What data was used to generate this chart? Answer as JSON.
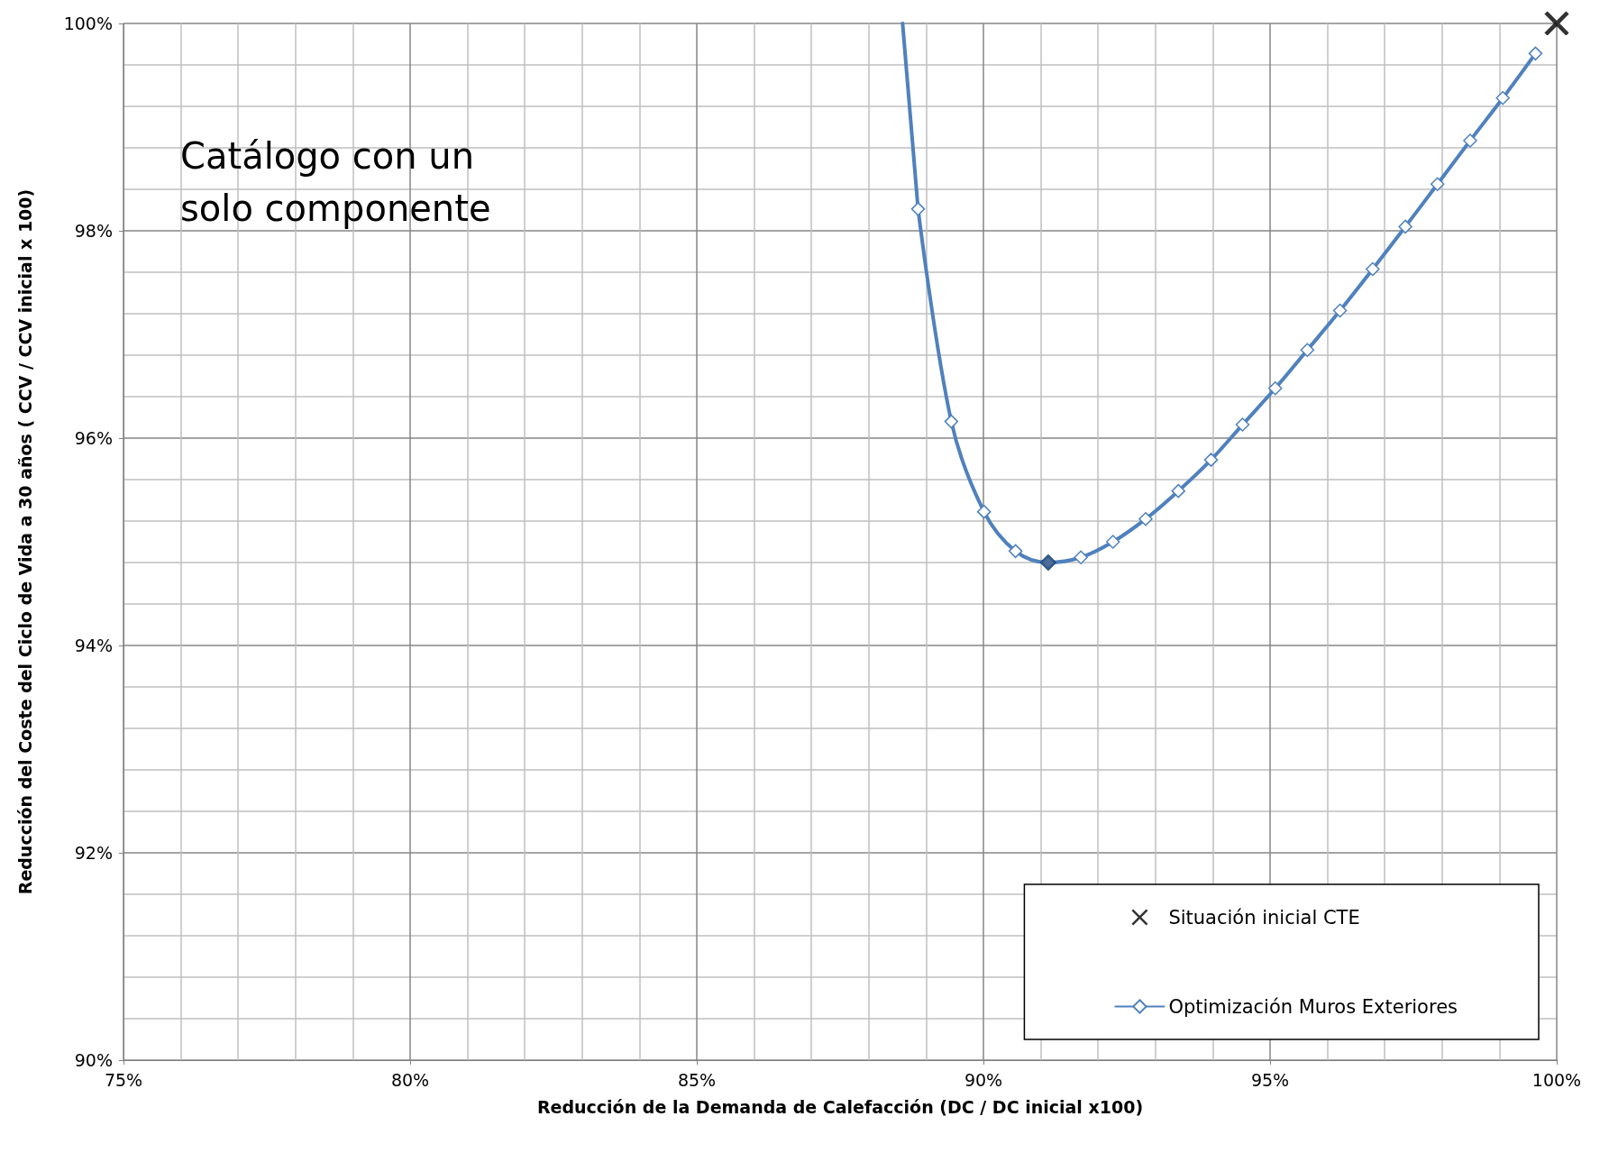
{
  "chart_data": {
    "type": "line",
    "xlabel": "Reducción de la Demanda de Calefacción (DC / DC inicial x100)",
    "ylabel": "Reducción del Coste del Ciclo de Vida a 30 años ( CCV / CCV inicial x 100)",
    "annotations": [
      "Catálogo con un solo componente"
    ],
    "xlim": [
      75,
      100
    ],
    "xticks": [
      {
        "value": 75,
        "label": "75%"
      },
      {
        "value": 80,
        "label": "80%"
      },
      {
        "value": 85,
        "label": "85%"
      },
      {
        "value": 90,
        "label": "90%"
      },
      {
        "value": 95,
        "label": "95%"
      },
      {
        "value": 100,
        "label": "100%"
      }
    ],
    "ylim": [
      90,
      100
    ],
    "yticks": [
      {
        "value": 90,
        "label": "90%"
      },
      {
        "value": 92,
        "label": "92%"
      },
      {
        "value": 94,
        "label": "94%"
      },
      {
        "value": 96,
        "label": "96%"
      },
      {
        "value": 98,
        "label": "98%"
      },
      {
        "value": 100,
        "label": "100%"
      }
    ],
    "grid": true,
    "legend": "bottom right",
    "series": [
      {
        "name": "Situación inicial CTE",
        "type": "scatter",
        "marker": "cross",
        "color": "#000000",
        "x": [
          100
        ],
        "values": [
          100
        ]
      },
      {
        "type": "line",
        "color": "#4f81bd",
        "x": [
          88.59,
          88.86
        ],
        "values": [
          100,
          98.21
        ]
      },
      {
        "name": "Optimización Muros Exteriores",
        "marker": "diamond",
        "color": "#4f81bd",
        "x": [
          88.86,
          89.44,
          90.01,
          90.56,
          91.13,
          91.7,
          92.26,
          92.83,
          93.4,
          93.97,
          94.52,
          95.09,
          95.65,
          96.22,
          96.79,
          97.36,
          97.92,
          98.49,
          99.06,
          99.63
        ],
        "values": [
          98.21,
          96.16,
          95.29,
          94.91,
          94.8,
          94.85,
          95.0,
          95.22,
          95.49,
          95.79,
          96.13,
          96.48,
          96.85,
          97.23,
          97.63,
          98.04,
          98.45,
          98.87,
          99.28,
          99.71
        ]
      },
      {
        "type": "scatter",
        "marker": "diamond",
        "color": "#1f497d",
        "x": [
          91.13
        ],
        "values": [
          94.8
        ]
      }
    ]
  }
}
